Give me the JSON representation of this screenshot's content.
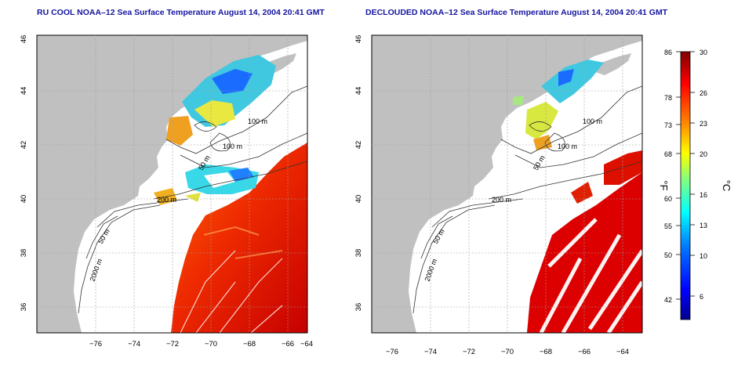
{
  "panels": [
    {
      "title": "RU COOL NOAA–12 Sea Surface Temperature August 14, 2004 20:41 GMT",
      "x_ticks": [
        "−76",
        "−74",
        "−72",
        "−70",
        "−68",
        "−66",
        "−64"
      ],
      "y_ticks": [
        "46",
        "44",
        "42",
        "40",
        "38",
        "36"
      ],
      "contour_labels": [
        "100 m",
        "100 m",
        "50 m",
        "200 m",
        "50 m",
        "2000 m"
      ]
    },
    {
      "title": "DECLOUDED NOAA–12 Sea Surface Temperature August 14, 2004 20:41 GMT",
      "x_ticks": [
        "−76",
        "−74",
        "−72",
        "−70",
        "−68",
        "−66",
        "−64"
      ],
      "y_ticks": [
        "46",
        "44",
        "42",
        "40",
        "38",
        "36"
      ],
      "contour_labels": [
        "100 m",
        "100 m",
        "50 m",
        "200 m",
        "50 m",
        "2000 m"
      ]
    }
  ],
  "colorbar": {
    "f_label": "°F",
    "c_label": "°C",
    "f_ticks": [
      "86",
      "78",
      "73",
      "68",
      "60",
      "55",
      "50",
      "42"
    ],
    "c_ticks": [
      "30",
      "26",
      "23",
      "20",
      "16",
      "13",
      "10",
      "6"
    ],
    "range_c": [
      4,
      30
    ],
    "colors": [
      "#00008f",
      "#0000ff",
      "#0080ff",
      "#00ffff",
      "#80ff80",
      "#ffff00",
      "#ff8000",
      "#ff0000",
      "#800000"
    ]
  },
  "colors": {
    "land": "#c0c0c0",
    "ocean_no_data": "#ffffff",
    "title": "#1515a0"
  }
}
